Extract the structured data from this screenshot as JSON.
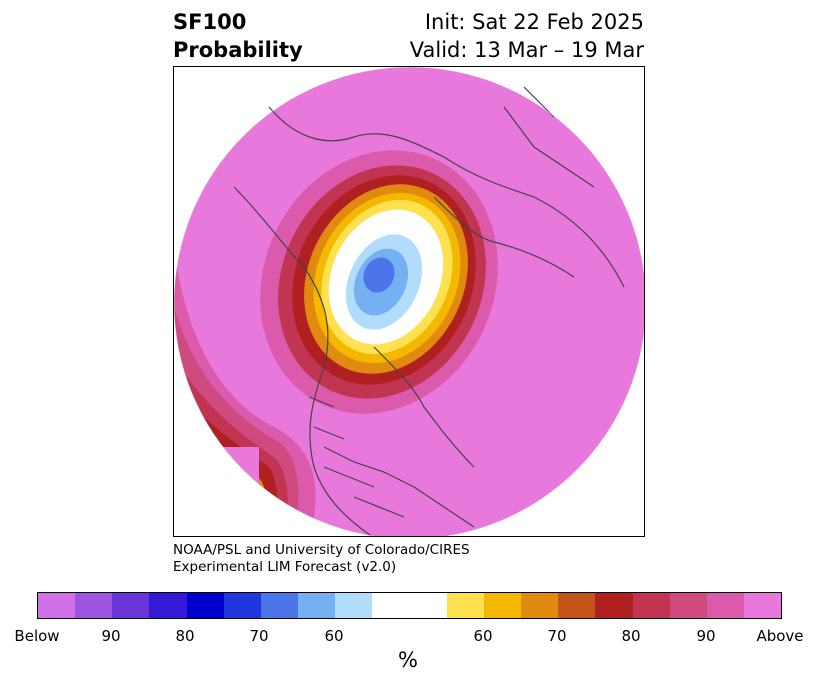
{
  "header": {
    "left_line1": "SF100",
    "left_line2": "Probability",
    "right_line1": "Init: Sat 22 Feb 2025",
    "right_line2": "Valid: 13 Mar – 19 Mar"
  },
  "credit": {
    "line1": "NOAA/PSL and University of Colorado/CIRES",
    "line2": "Experimental LIM Forecast (v2.0)"
  },
  "colorbar": {
    "colors": [
      "#d070e8",
      "#9b55e0",
      "#6a35d8",
      "#3419d6",
      "#0000cc",
      "#2236dd",
      "#4c75ea",
      "#75b0f3",
      "#b1dcfb",
      "#ffffff",
      "#ffffff",
      "#ffe14f",
      "#f5b800",
      "#e08b10",
      "#c45418",
      "#b02020",
      "#c23552",
      "#cf4a7e",
      "#dc5aac",
      "#e878dc"
    ],
    "tick_labels": [
      "Below",
      "90",
      "80",
      "70",
      "60",
      "60",
      "70",
      "80",
      "90",
      "Above"
    ],
    "unit": "%"
  },
  "map": {
    "projection": "north polar stereographic",
    "field": "SF100 probability",
    "dominant_category": "Above (pink/magenta) over most of the hemisphere",
    "below_center": "light-blue/blue minimum over Greenland / Arctic Ocean"
  }
}
